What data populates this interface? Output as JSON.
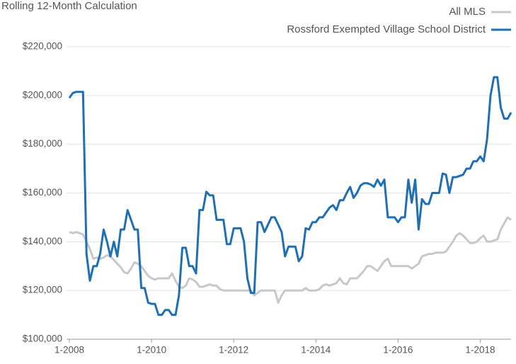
{
  "chart_data": {
    "type": "line",
    "title": "Rolling 12-Month Calculation",
    "x": [
      "1-2008",
      "2-2008",
      "3-2008",
      "4-2008",
      "5-2008",
      "6-2008",
      "7-2008",
      "8-2008",
      "9-2008",
      "10-2008",
      "11-2008",
      "12-2008",
      "1-2009",
      "2-2009",
      "3-2009",
      "4-2009",
      "5-2009",
      "6-2009",
      "7-2009",
      "8-2009",
      "9-2009",
      "10-2009",
      "11-2009",
      "12-2009",
      "1-2010",
      "2-2010",
      "3-2010",
      "4-2010",
      "5-2010",
      "6-2010",
      "7-2010",
      "8-2010",
      "9-2010",
      "10-2010",
      "11-2010",
      "12-2010",
      "1-2011",
      "2-2011",
      "3-2011",
      "4-2011",
      "5-2011",
      "6-2011",
      "7-2011",
      "8-2011",
      "9-2011",
      "10-2011",
      "11-2011",
      "12-2011",
      "1-2012",
      "2-2012",
      "3-2012",
      "4-2012",
      "5-2012",
      "6-2012",
      "7-2012",
      "8-2012",
      "9-2012",
      "10-2012",
      "11-2012",
      "12-2012",
      "1-2013",
      "2-2013",
      "3-2013",
      "4-2013",
      "5-2013",
      "6-2013",
      "7-2013",
      "8-2013",
      "9-2013",
      "10-2013",
      "11-2013",
      "12-2013",
      "1-2014",
      "2-2014",
      "3-2014",
      "4-2014",
      "5-2014",
      "6-2014",
      "7-2014",
      "8-2014",
      "9-2014",
      "10-2014",
      "11-2014",
      "12-2014",
      "1-2015",
      "2-2015",
      "3-2015",
      "4-2015",
      "5-2015",
      "6-2015",
      "7-2015",
      "8-2015",
      "9-2015",
      "10-2015",
      "11-2015",
      "12-2015",
      "1-2016",
      "2-2016",
      "3-2016",
      "4-2016",
      "5-2016",
      "6-2016",
      "7-2016",
      "8-2016",
      "9-2016",
      "10-2016",
      "11-2016",
      "12-2016",
      "1-2017",
      "2-2017",
      "3-2017",
      "4-2017",
      "5-2017",
      "6-2017",
      "7-2017",
      "8-2017",
      "9-2017",
      "10-2017",
      "11-2017",
      "12-2017",
      "1-2018",
      "2-2018",
      "3-2018",
      "4-2018",
      "5-2018",
      "6-2018",
      "7-2018",
      "8-2018",
      "9-2018",
      "10-2018"
    ],
    "xlim": [
      "1-2008",
      "10-2018"
    ],
    "xticks": [
      "1-2008",
      "1-2010",
      "1-2012",
      "1-2014",
      "1-2016",
      "1-2018"
    ],
    "series": [
      {
        "name": "All MLS",
        "color": "#c8c8c8",
        "values": [
          144000,
          143500,
          144000,
          143500,
          143000,
          140000,
          137000,
          133000,
          133500,
          133000,
          133500,
          134500,
          134000,
          132500,
          131000,
          129500,
          127500,
          127000,
          129000,
          131500,
          131000,
          130000,
          128000,
          126000,
          125000,
          124500,
          125000,
          125000,
          125000,
          125000,
          127000,
          124000,
          121500,
          121000,
          122000,
          125000,
          124500,
          123500,
          121500,
          121500,
          122000,
          122500,
          122000,
          122000,
          120500,
          120000,
          120000,
          120000,
          120000,
          120000,
          120000,
          120000,
          120000,
          120000,
          118000,
          119000,
          120000,
          120000,
          120000,
          120000,
          120000,
          115000,
          118000,
          120000,
          120000,
          120000,
          120000,
          120000,
          120000,
          121000,
          120000,
          120000,
          120000,
          120500,
          122000,
          122500,
          122000,
          122500,
          123000,
          125000,
          123000,
          122500,
          125000,
          125000,
          125000,
          126500,
          128000,
          130000,
          130000,
          129000,
          128000,
          130000,
          132000,
          133000,
          130000,
          130000,
          130000,
          130000,
          130000,
          130000,
          129000,
          130000,
          131000,
          134000,
          134500,
          135000,
          135000,
          135500,
          135500,
          135500,
          136000,
          138000,
          140000,
          142500,
          143500,
          142500,
          141000,
          139500,
          139500,
          140000,
          141500,
          142500,
          140000,
          140000,
          140500,
          141000,
          145000,
          147500,
          150000,
          149000
        ]
      },
      {
        "name": "Rossford Exempted Village School District",
        "color": "#1f6fb5",
        "values": [
          199000,
          201000,
          201500,
          201500,
          201500,
          135000,
          124000,
          130000,
          130000,
          135000,
          145000,
          140000,
          134000,
          140000,
          134000,
          145000,
          145000,
          153000,
          149000,
          145000,
          145000,
          121000,
          121000,
          115000,
          114500,
          114500,
          110000,
          110000,
          112000,
          112000,
          110000,
          110000,
          118000,
          137500,
          137500,
          130000,
          130000,
          127000,
          153000,
          153000,
          160500,
          159000,
          159000,
          149000,
          149000,
          149000,
          139000,
          139000,
          145500,
          145500,
          145500,
          140000,
          125000,
          119000,
          119000,
          148000,
          148000,
          144000,
          147000,
          150000,
          150000,
          147000,
          144000,
          134000,
          138000,
          138000,
          138000,
          132000,
          134000,
          145500,
          145000,
          148000,
          148000,
          150000,
          150000,
          152000,
          154000,
          155000,
          153000,
          157000,
          157000,
          160000,
          162500,
          158000,
          160000,
          163000,
          164000,
          164000,
          163500,
          162500,
          165500,
          163000,
          165500,
          150000,
          150000,
          150000,
          148000,
          150000,
          150000,
          165500,
          156000,
          165500,
          145000,
          157500,
          155500,
          155500,
          160000,
          160000,
          160000,
          168000,
          167500,
          160000,
          166500,
          166500,
          167000,
          167500,
          170000,
          170000,
          173000,
          173000,
          175000,
          173000,
          182000,
          200000,
          207500,
          207500,
          195000,
          190500,
          190500,
          193000
        ]
      }
    ],
    "ylim": [
      100000,
      220000
    ],
    "yticks": [
      {
        "value": 100000,
        "label": "$100,000"
      },
      {
        "value": 120000,
        "label": "$120,000"
      },
      {
        "value": 140000,
        "label": "$140,000"
      },
      {
        "value": 160000,
        "label": "$160,000"
      },
      {
        "value": 180000,
        "label": "$180,000"
      },
      {
        "value": 200000,
        "label": "$200,000"
      },
      {
        "value": 220000,
        "label": "$220,000"
      }
    ],
    "grid": true,
    "legend": "top-right"
  }
}
